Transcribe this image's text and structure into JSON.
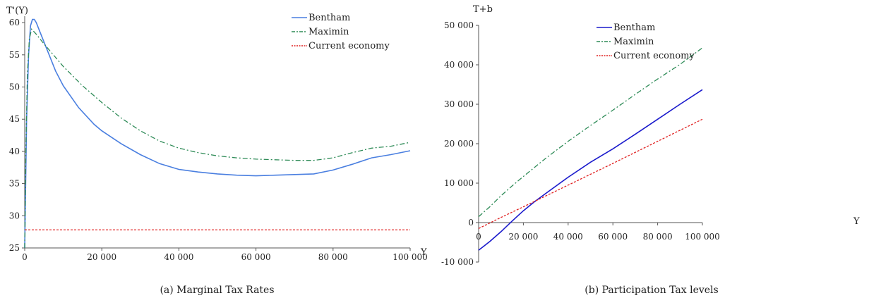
{
  "chart_data": [
    {
      "type": "line",
      "caption": "(a) Marginal Tax Rates",
      "ylabel": "T'(Y)",
      "xlabel": "Y",
      "xlim": [
        0,
        100000
      ],
      "ylim": [
        25,
        61
      ],
      "xticks": [
        0,
        20000,
        40000,
        60000,
        80000,
        100000
      ],
      "xtick_labels": [
        "0",
        "20 000",
        "40 000",
        "60 000",
        "80 000",
        "100 000"
      ],
      "yticks": [
        25,
        30,
        35,
        40,
        45,
        50,
        55,
        60
      ],
      "ytick_labels": [
        "25",
        "30",
        "35",
        "40",
        "45",
        "50",
        "55",
        "60"
      ],
      "grid": false,
      "legend_position": "top-right",
      "series": [
        {
          "name": "Bentham",
          "color": "#4a7fe0",
          "style": "solid",
          "points": [
            [
              0,
              25
            ],
            [
              500,
              45
            ],
            [
              1000,
              55
            ],
            [
              1500,
              59.5
            ],
            [
              2000,
              60.5
            ],
            [
              2500,
              60.5
            ],
            [
              3000,
              60
            ],
            [
              4000,
              58.5
            ],
            [
              6000,
              55.5
            ],
            [
              8000,
              52.5
            ],
            [
              10000,
              50.2
            ],
            [
              14000,
              46.8
            ],
            [
              18000,
              44.2
            ],
            [
              20000,
              43.2
            ],
            [
              25000,
              41.2
            ],
            [
              30000,
              39.5
            ],
            [
              35000,
              38.1
            ],
            [
              40000,
              37.2
            ],
            [
              45000,
              36.8
            ],
            [
              50000,
              36.5
            ],
            [
              55000,
              36.3
            ],
            [
              60000,
              36.2
            ],
            [
              65000,
              36.3
            ],
            [
              70000,
              36.4
            ],
            [
              75000,
              36.5
            ],
            [
              80000,
              37.1
            ],
            [
              85000,
              38.0
            ],
            [
              90000,
              39.0
            ],
            [
              95000,
              39.5
            ],
            [
              100000,
              40.1
            ]
          ]
        },
        {
          "name": "Maximin",
          "color": "#2e8b57",
          "style": "dashdot",
          "points": [
            [
              0,
              25
            ],
            [
              300,
              40
            ],
            [
              700,
              52
            ],
            [
              1200,
              57.5
            ],
            [
              1800,
              59
            ],
            [
              3000,
              58.2
            ],
            [
              5000,
              56.7
            ],
            [
              8000,
              54.6
            ],
            [
              10000,
              53.2
            ],
            [
              15000,
              50.2
            ],
            [
              20000,
              47.6
            ],
            [
              25000,
              45.2
            ],
            [
              30000,
              43.2
            ],
            [
              35000,
              41.6
            ],
            [
              40000,
              40.5
            ],
            [
              45000,
              39.8
            ],
            [
              50000,
              39.3
            ],
            [
              55000,
              39.0
            ],
            [
              60000,
              38.8
            ],
            [
              65000,
              38.7
            ],
            [
              70000,
              38.6
            ],
            [
              75000,
              38.6
            ],
            [
              80000,
              39.0
            ],
            [
              85000,
              39.8
            ],
            [
              90000,
              40.5
            ],
            [
              95000,
              40.8
            ],
            [
              100000,
              41.4
            ]
          ]
        },
        {
          "name": "Current economy",
          "color": "#e02020",
          "style": "dashed",
          "points": [
            [
              0,
              27.8
            ],
            [
              100000,
              27.8
            ]
          ]
        }
      ]
    },
    {
      "type": "line",
      "caption": "(b) Participation Tax levels",
      "ylabel": "T+b",
      "xlabel": "Y",
      "xlim": [
        0,
        100000
      ],
      "ylim": [
        -10000,
        50000
      ],
      "xticks": [
        0,
        20000,
        40000,
        60000,
        80000,
        100000
      ],
      "xtick_labels": [
        "0",
        "20 000",
        "40 000",
        "60 000",
        "80 000",
        "100 000"
      ],
      "yticks": [
        -10000,
        0,
        10000,
        20000,
        30000,
        40000,
        50000
      ],
      "ytick_labels": [
        "-10 000",
        "0",
        "10 000",
        "20 000",
        "30 000",
        "40 000",
        "50 000"
      ],
      "grid": false,
      "legend_position": "top-center",
      "series": [
        {
          "name": "Bentham",
          "color": "#1a1acc",
          "style": "solid",
          "points": [
            [
              0,
              -7000
            ],
            [
              5000,
              -4800
            ],
            [
              10000,
              -2300
            ],
            [
              15000,
              400
            ],
            [
              20000,
              3000
            ],
            [
              25000,
              5300
            ],
            [
              30000,
              7400
            ],
            [
              40000,
              11500
            ],
            [
              50000,
              15300
            ],
            [
              60000,
              18700
            ],
            [
              70000,
              22400
            ],
            [
              80000,
              26200
            ],
            [
              90000,
              30000
            ],
            [
              100000,
              33700
            ]
          ]
        },
        {
          "name": "Maximin",
          "color": "#2e8b57",
          "style": "dashdot",
          "points": [
            [
              0,
              1500
            ],
            [
              5000,
              4000
            ],
            [
              10000,
              6800
            ],
            [
              15000,
              9300
            ],
            [
              20000,
              11700
            ],
            [
              30000,
              16300
            ],
            [
              40000,
              20600
            ],
            [
              50000,
              24600
            ],
            [
              60000,
              28500
            ],
            [
              70000,
              32500
            ],
            [
              80000,
              36400
            ],
            [
              90000,
              40100
            ],
            [
              100000,
              44300
            ]
          ]
        },
        {
          "name": "Current economy",
          "color": "#e02020",
          "style": "dashed",
          "points": [
            [
              0,
              -1500
            ],
            [
              10000,
              1300
            ],
            [
              20000,
              4000
            ],
            [
              40000,
              9500
            ],
            [
              60000,
              15000
            ],
            [
              80000,
              20600
            ],
            [
              100000,
              26200
            ]
          ]
        }
      ]
    }
  ]
}
